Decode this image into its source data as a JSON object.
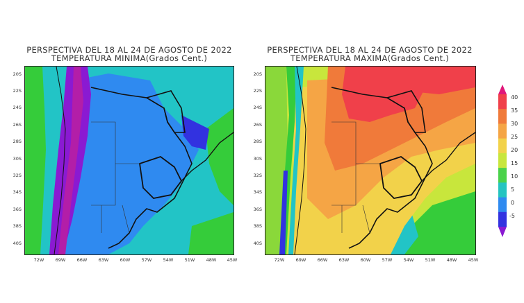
{
  "panels": [
    {
      "title_line1": "PERSPECTIVA DEL 18 AL 24 DE AGOSTO DE 2022",
      "title_line2": "TEMPERATURA MINIMA(Grados Cent.)"
    },
    {
      "title_line1": "PERSPECTIVA DEL 18 AL 24 DE AGOSTO DE 2022",
      "title_line2": "TEMPERATURA MAXIMA(Grados Cent.)"
    }
  ],
  "lat_labels": [
    "20S",
    "22S",
    "24S",
    "26S",
    "28S",
    "30S",
    "32S",
    "34S",
    "36S",
    "38S",
    "40S"
  ],
  "lon_labels": [
    "72W",
    "69W",
    "66W",
    "63W",
    "60W",
    "57W",
    "54W",
    "51W",
    "48W",
    "45W"
  ],
  "colorbar": {
    "ticks": [
      "40",
      "35",
      "30",
      "25",
      "20",
      "15",
      "10",
      "5",
      "0",
      "-5"
    ],
    "colors": [
      "#e0187a",
      "#f0404a",
      "#f07a3a",
      "#f5a545",
      "#f2d24a",
      "#c8e63c",
      "#4ad24a",
      "#25c4c0",
      "#2f8af0",
      "#3232e0",
      "#8a1ad2"
    ]
  }
}
